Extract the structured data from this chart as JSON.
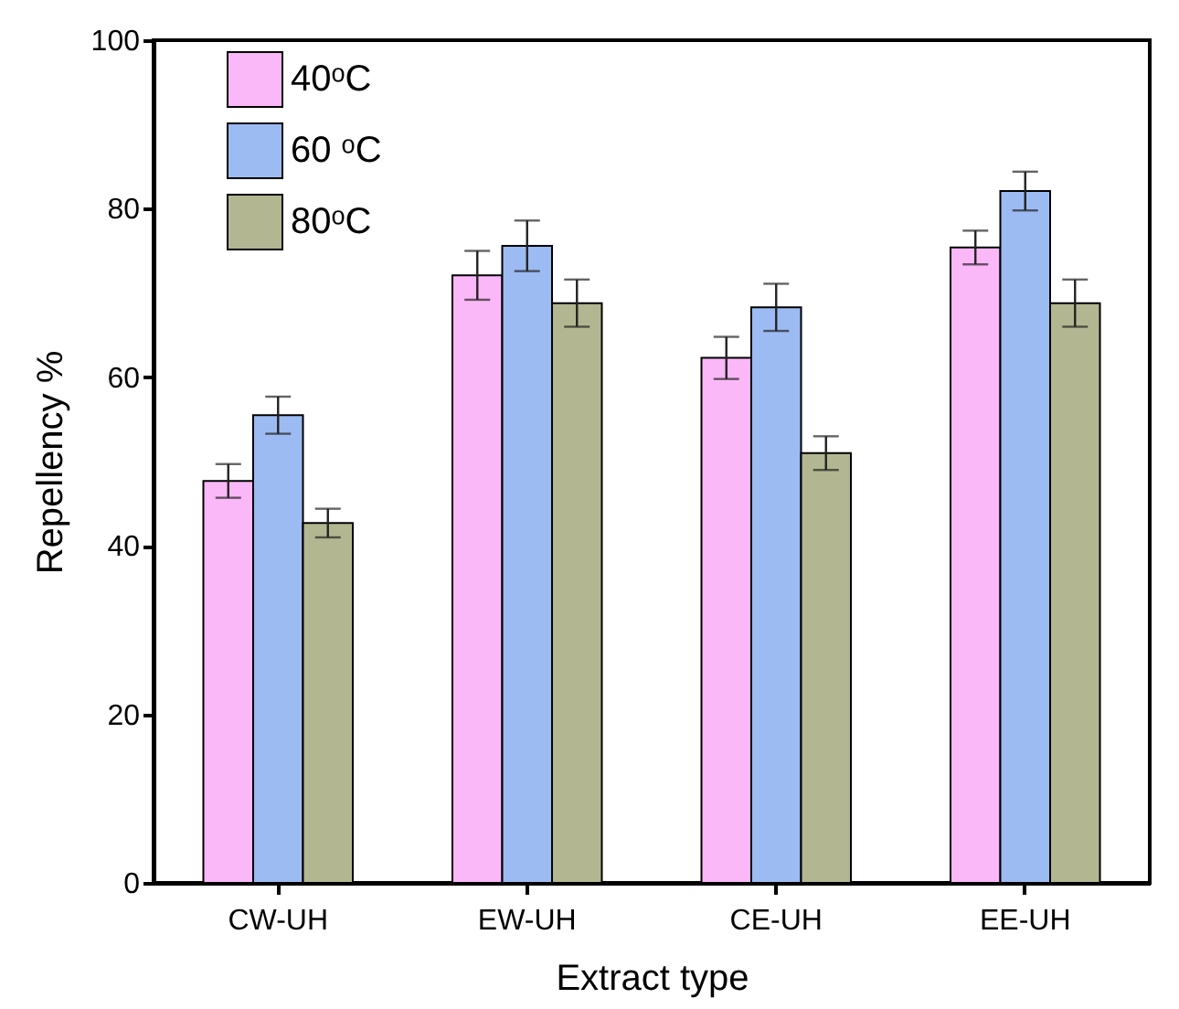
{
  "chart_data": {
    "type": "bar",
    "xlabel": "Extract type",
    "ylabel": "Repellency %",
    "categories": [
      "CW-UH",
      "EW-UH",
      "CE-UH",
      "EE-UH"
    ],
    "series": [
      {
        "name": "40ᵒC",
        "color": "#fbb8f8",
        "values": [
          47.7,
          72.1,
          62.3,
          75.4
        ],
        "errors": [
          2,
          2.9,
          2.5,
          2
        ]
      },
      {
        "name": "60 ᵒC",
        "color": "#9dbbf3",
        "values": [
          55.5,
          75.6,
          68.3,
          82.1
        ],
        "errors": [
          2.2,
          3,
          2.8,
          2.3
        ]
      },
      {
        "name": "80ᵒC",
        "color": "#b2b791",
        "values": [
          42.7,
          68.8,
          51.0,
          68.8
        ],
        "errors": [
          1.7,
          2.8,
          2,
          2.8
        ]
      }
    ],
    "ylim": [
      0,
      100
    ],
    "yticks": [
      0,
      20,
      40,
      60,
      80,
      100
    ],
    "grid": false,
    "legend": "top left"
  }
}
